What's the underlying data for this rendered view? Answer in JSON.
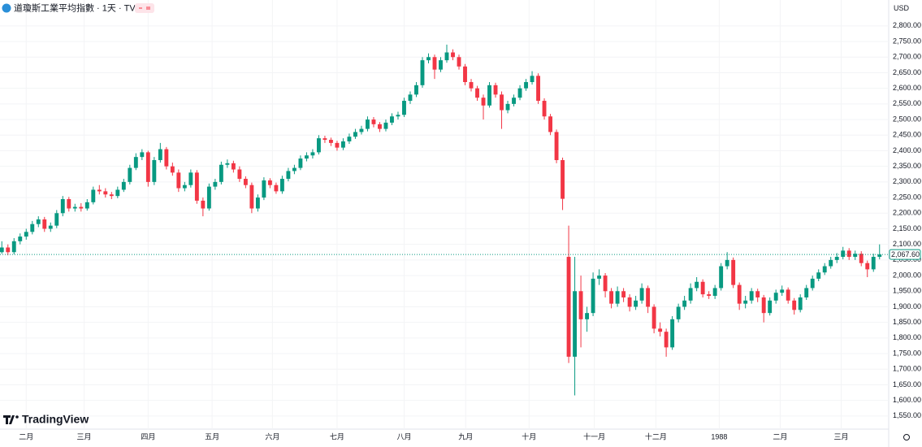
{
  "chart_data": {
    "type": "candlestick",
    "title": "道瓊斯工業平均指數 · 1天 · TVC",
    "currency": "USD",
    "brand": "TradingView",
    "up_color": "#089981",
    "down_color": "#f23645",
    "grid": true,
    "last_price": {
      "value": 2067.6,
      "label": "2,067.60"
    },
    "xlim": [
      -0.3,
      145.5
    ],
    "xticks": [
      {
        "value": 4,
        "label": "二月"
      },
      {
        "value": 13.5,
        "label": "三月"
      },
      {
        "value": 24,
        "label": "四月"
      },
      {
        "value": 34.5,
        "label": "五月"
      },
      {
        "value": 44.4,
        "label": "六月"
      },
      {
        "value": 55,
        "label": "七月"
      },
      {
        "value": 66,
        "label": "八月"
      },
      {
        "value": 76.1,
        "label": "九月"
      },
      {
        "value": 86.5,
        "label": "十月"
      },
      {
        "value": 97.2,
        "label": "十一月"
      },
      {
        "value": 107.3,
        "label": "十二月"
      },
      {
        "value": 117.7,
        "label": "1988"
      },
      {
        "value": 127.7,
        "label": "二月"
      },
      {
        "value": 137.7,
        "label": "三月"
      }
    ],
    "ylim": [
      1508,
      2883
    ],
    "yticks": [
      {
        "value": 1550,
        "label": "1,550.00"
      },
      {
        "value": 1600,
        "label": "1,600.00"
      },
      {
        "value": 1650,
        "label": "1,650.00"
      },
      {
        "value": 1700,
        "label": "1,700.00"
      },
      {
        "value": 1750,
        "label": "1,750.00"
      },
      {
        "value": 1800,
        "label": "1,800.00"
      },
      {
        "value": 1850,
        "label": "1,850.00"
      },
      {
        "value": 1900,
        "label": "1,900.00"
      },
      {
        "value": 1950,
        "label": "1,950.00"
      },
      {
        "value": 2000,
        "label": "2,000.00"
      },
      {
        "value": 2050,
        "label": "2,050.00"
      },
      {
        "value": 2100,
        "label": "2,100.00"
      },
      {
        "value": 2150,
        "label": "2,150.00"
      },
      {
        "value": 2200,
        "label": "2,200.00"
      },
      {
        "value": 2250,
        "label": "2,250.00"
      },
      {
        "value": 2300,
        "label": "2,300.00"
      },
      {
        "value": 2350,
        "label": "2,350.00"
      },
      {
        "value": 2400,
        "label": "2,400.00"
      },
      {
        "value": 2450,
        "label": "2,450.00"
      },
      {
        "value": 2500,
        "label": "2,500.00"
      },
      {
        "value": 2550,
        "label": "2,550.00"
      },
      {
        "value": 2600,
        "label": "2,600.00"
      },
      {
        "value": 2650,
        "label": "2,650.00"
      },
      {
        "value": 2700,
        "label": "2,700.00"
      },
      {
        "value": 2750,
        "label": "2,750.00"
      },
      {
        "value": 2800,
        "label": "2,800.00"
      }
    ],
    "ohlc": [
      [
        2075,
        2110,
        2070,
        2090
      ],
      [
        2090,
        2100,
        2065,
        2075
      ],
      [
        2075,
        2120,
        2068,
        2110
      ],
      [
        2110,
        2135,
        2100,
        2125
      ],
      [
        2125,
        2150,
        2115,
        2140
      ],
      [
        2140,
        2175,
        2132,
        2165
      ],
      [
        2165,
        2190,
        2155,
        2180
      ],
      [
        2180,
        2188,
        2140,
        2150
      ],
      [
        2150,
        2170,
        2140,
        2160
      ],
      [
        2160,
        2210,
        2152,
        2200
      ],
      [
        2200,
        2255,
        2190,
        2245
      ],
      [
        2245,
        2252,
        2205,
        2215
      ],
      [
        2215,
        2230,
        2205,
        2220
      ],
      [
        2220,
        2232,
        2205,
        2215
      ],
      [
        2215,
        2245,
        2208,
        2235
      ],
      [
        2235,
        2285,
        2228,
        2275
      ],
      [
        2275,
        2290,
        2260,
        2270
      ],
      [
        2270,
        2280,
        2250,
        2260
      ],
      [
        2260,
        2268,
        2245,
        2255
      ],
      [
        2255,
        2285,
        2248,
        2275
      ],
      [
        2275,
        2310,
        2268,
        2300
      ],
      [
        2300,
        2355,
        2292,
        2345
      ],
      [
        2345,
        2392,
        2338,
        2380
      ],
      [
        2380,
        2405,
        2370,
        2395
      ],
      [
        2395,
        2400,
        2285,
        2300
      ],
      [
        2300,
        2380,
        2290,
        2370
      ],
      [
        2370,
        2425,
        2362,
        2405
      ],
      [
        2405,
        2412,
        2340,
        2350
      ],
      [
        2350,
        2362,
        2320,
        2330
      ],
      [
        2330,
        2340,
        2268,
        2280
      ],
      [
        2280,
        2300,
        2270,
        2290
      ],
      [
        2290,
        2340,
        2282,
        2330
      ],
      [
        2330,
        2338,
        2230,
        2240
      ],
      [
        2240,
        2250,
        2190,
        2215
      ],
      [
        2215,
        2295,
        2208,
        2285
      ],
      [
        2285,
        2310,
        2275,
        2300
      ],
      [
        2300,
        2365,
        2292,
        2355
      ],
      [
        2355,
        2372,
        2345,
        2360
      ],
      [
        2360,
        2368,
        2330,
        2340
      ],
      [
        2340,
        2350,
        2300,
        2310
      ],
      [
        2310,
        2318,
        2280,
        2290
      ],
      [
        2290,
        2298,
        2200,
        2215
      ],
      [
        2215,
        2260,
        2205,
        2250
      ],
      [
        2250,
        2315,
        2242,
        2305
      ],
      [
        2305,
        2312,
        2280,
        2290
      ],
      [
        2290,
        2298,
        2262,
        2270
      ],
      [
        2270,
        2320,
        2262,
        2310
      ],
      [
        2310,
        2345,
        2302,
        2335
      ],
      [
        2335,
        2355,
        2325,
        2345
      ],
      [
        2345,
        2385,
        2338,
        2375
      ],
      [
        2375,
        2395,
        2366,
        2385
      ],
      [
        2385,
        2405,
        2375,
        2395
      ],
      [
        2395,
        2450,
        2388,
        2440
      ],
      [
        2440,
        2448,
        2425,
        2435
      ],
      [
        2435,
        2442,
        2415,
        2425
      ],
      [
        2425,
        2432,
        2400,
        2410
      ],
      [
        2410,
        2440,
        2402,
        2430
      ],
      [
        2430,
        2455,
        2422,
        2445
      ],
      [
        2445,
        2470,
        2438,
        2460
      ],
      [
        2460,
        2480,
        2452,
        2470
      ],
      [
        2470,
        2510,
        2462,
        2500
      ],
      [
        2500,
        2508,
        2475,
        2485
      ],
      [
        2485,
        2492,
        2460,
        2470
      ],
      [
        2470,
        2500,
        2462,
        2490
      ],
      [
        2490,
        2520,
        2482,
        2510
      ],
      [
        2510,
        2525,
        2500,
        2515
      ],
      [
        2515,
        2570,
        2508,
        2560
      ],
      [
        2560,
        2590,
        2550,
        2580
      ],
      [
        2580,
        2620,
        2572,
        2610
      ],
      [
        2610,
        2700,
        2602,
        2690
      ],
      [
        2690,
        2712,
        2680,
        2700
      ],
      [
        2700,
        2708,
        2630,
        2660
      ],
      [
        2660,
        2700,
        2652,
        2690
      ],
      [
        2690,
        2740,
        2682,
        2715
      ],
      [
        2715,
        2725,
        2690,
        2700
      ],
      [
        2700,
        2708,
        2660,
        2670
      ],
      [
        2670,
        2678,
        2610,
        2620
      ],
      [
        2620,
        2630,
        2590,
        2600
      ],
      [
        2600,
        2608,
        2560,
        2570
      ],
      [
        2570,
        2580,
        2500,
        2545
      ],
      [
        2545,
        2620,
        2538,
        2610
      ],
      [
        2610,
        2618,
        2570,
        2580
      ],
      [
        2580,
        2590,
        2470,
        2530
      ],
      [
        2530,
        2560,
        2520,
        2550
      ],
      [
        2550,
        2580,
        2542,
        2570
      ],
      [
        2570,
        2610,
        2562,
        2600
      ],
      [
        2600,
        2630,
        2592,
        2620
      ],
      [
        2620,
        2655,
        2612,
        2640
      ],
      [
        2640,
        2648,
        2550,
        2560
      ],
      [
        2560,
        2568,
        2500,
        2510
      ],
      [
        2510,
        2518,
        2450,
        2460
      ],
      [
        2460,
        2468,
        2360,
        2370
      ],
      [
        2370,
        2378,
        2210,
        2246
      ],
      [
        2060,
        2160,
        1720,
        1740
      ],
      [
        1740,
        2060,
        1616,
        1950
      ],
      [
        1950,
        2000,
        1770,
        1860
      ],
      [
        1860,
        1900,
        1820,
        1880
      ],
      [
        1880,
        2010,
        1870,
        1990
      ],
      [
        1990,
        2020,
        1970,
        2000
      ],
      [
        2000,
        2008,
        1930,
        1950
      ],
      [
        1950,
        1960,
        1895,
        1910
      ],
      [
        1910,
        1965,
        1900,
        1950
      ],
      [
        1950,
        1960,
        1915,
        1930
      ],
      [
        1930,
        1940,
        1885,
        1900
      ],
      [
        1900,
        1935,
        1890,
        1920
      ],
      [
        1920,
        1975,
        1910,
        1960
      ],
      [
        1960,
        1968,
        1880,
        1900
      ],
      [
        1900,
        1908,
        1815,
        1830
      ],
      [
        1830,
        1850,
        1805,
        1820
      ],
      [
        1820,
        1830,
        1740,
        1770
      ],
      [
        1770,
        1870,
        1762,
        1860
      ],
      [
        1860,
        1910,
        1850,
        1900
      ],
      [
        1900,
        1935,
        1890,
        1920
      ],
      [
        1920,
        1975,
        1910,
        1960
      ],
      [
        1960,
        1995,
        1950,
        1980
      ],
      [
        1980,
        1988,
        1930,
        1940
      ],
      [
        1940,
        1950,
        1925,
        1935
      ],
      [
        1935,
        1970,
        1925,
        1960
      ],
      [
        1960,
        2040,
        1952,
        2030
      ],
      [
        2030,
        2075,
        2020,
        2050
      ],
      [
        2050,
        2058,
        1960,
        1970
      ],
      [
        1970,
        1978,
        1890,
        1910
      ],
      [
        1910,
        1935,
        1895,
        1920
      ],
      [
        1920,
        1960,
        1910,
        1950
      ],
      [
        1950,
        1958,
        1915,
        1930
      ],
      [
        1930,
        1938,
        1850,
        1880
      ],
      [
        1880,
        1930,
        1872,
        1920
      ],
      [
        1920,
        1955,
        1910,
        1945
      ],
      [
        1945,
        1968,
        1935,
        1955
      ],
      [
        1955,
        1962,
        1910,
        1920
      ],
      [
        1920,
        1928,
        1875,
        1890
      ],
      [
        1890,
        1940,
        1882,
        1930
      ],
      [
        1930,
        1970,
        1922,
        1960
      ],
      [
        1960,
        2000,
        1952,
        1990
      ],
      [
        1990,
        2020,
        1982,
        2010
      ],
      [
        2010,
        2040,
        2002,
        2030
      ],
      [
        2030,
        2060,
        2022,
        2050
      ],
      [
        2050,
        2072,
        2040,
        2060
      ],
      [
        2060,
        2092,
        2052,
        2080
      ],
      [
        2080,
        2088,
        2050,
        2060
      ],
      [
        2060,
        2080,
        2050,
        2070
      ],
      [
        2070,
        2078,
        2030,
        2040
      ],
      [
        2040,
        2048,
        1995,
        2020
      ],
      [
        2020,
        2070,
        2012,
        2060
      ],
      [
        2060,
        2100,
        2052,
        2067.6
      ]
    ]
  }
}
